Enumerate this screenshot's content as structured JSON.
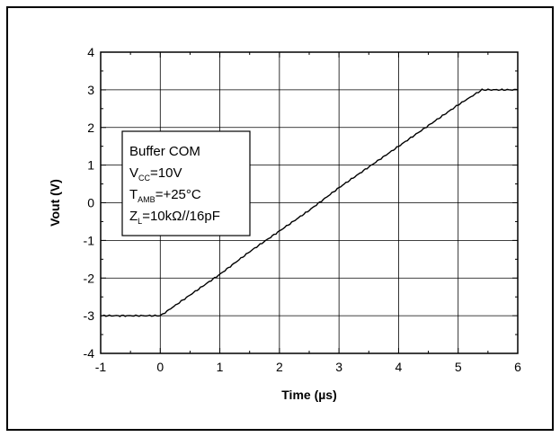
{
  "chart_data": {
    "type": "line",
    "title": "",
    "xlabel": "Time (µs)",
    "ylabel": "Vout (V)",
    "xlim": [
      -1,
      6
    ],
    "ylim": [
      -4,
      4
    ],
    "x_ticks": [
      "-1",
      "0",
      "1",
      "2",
      "3",
      "4",
      "5",
      "6"
    ],
    "y_ticks": [
      "4",
      "3",
      "2",
      "1",
      "0",
      "-1",
      "-2",
      "-3",
      "-4"
    ],
    "grid": true,
    "legend": {
      "placement": "left-center",
      "lines": [
        {
          "main": "Buffer COM"
        },
        {
          "main": "V",
          "sub": "CC",
          "rest": "=10V"
        },
        {
          "main": "T",
          "sub": "AMB",
          "rest": "=+25°C"
        },
        {
          "main": "Z",
          "sub": "L",
          "rest": "=10kΩ//16pF"
        }
      ]
    },
    "series": [
      {
        "color": "#000000",
        "x": [
          -1,
          -0.5,
          0,
          0.05,
          0.5,
          1,
          1.5,
          2,
          2.5,
          3,
          3.5,
          4,
          4.5,
          5,
          5.4,
          5.5,
          6
        ],
        "y": [
          -3.0,
          -3.0,
          -3.0,
          -2.95,
          -2.45,
          -1.9,
          -1.3,
          -0.75,
          -0.2,
          0.4,
          0.95,
          1.5,
          2.05,
          2.6,
          3.0,
          3.0,
          3.0
        ]
      }
    ]
  }
}
